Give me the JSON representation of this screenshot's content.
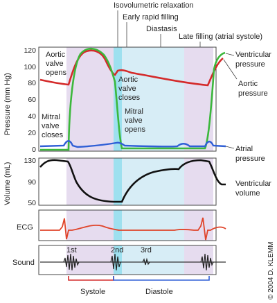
{
  "header": {
    "phase_labels": [
      "Isovolumetric relaxation",
      "Early rapid filling",
      "Diastasis",
      "Late filling (atrial systole)"
    ]
  },
  "pressure_panel": {
    "ylabel": "Pressure (mm Hg)",
    "ticks": [
      "120",
      "100",
      "80",
      "60",
      "40",
      "20",
      "0"
    ],
    "annotations": {
      "aortic_opens": [
        "Aortic",
        "valve",
        "opens"
      ],
      "aortic_closes": [
        "Aortic",
        "valve",
        "closes"
      ],
      "mitral_closes": [
        "Mitral",
        "valve",
        "closes"
      ],
      "mitral_opens": [
        "Mitral",
        "valve",
        "opens"
      ]
    },
    "right_labels": {
      "ventricular": [
        "Ventricular",
        "pressure"
      ],
      "aortic": [
        "Aortic",
        "pressure"
      ],
      "atrial": [
        "Atrial",
        "pressure"
      ]
    },
    "colors": {
      "aortic": "#d42a2a",
      "ventricular": "#3cb83c",
      "atrial": "#2f5fd6"
    }
  },
  "volume_panel": {
    "ylabel": "Volume (mL)",
    "ticks": [
      "130",
      "90",
      "50"
    ],
    "right_label": [
      "Ventricular",
      "volume"
    ],
    "color": "#111111"
  },
  "ecg_panel": {
    "label": "ECG",
    "color": "#e0442a"
  },
  "sound_panel": {
    "label": "Sound",
    "heart_sounds": [
      "1st",
      "2nd",
      "3rd"
    ],
    "color": "#222222"
  },
  "phases": {
    "systole": "Systole",
    "diastole": "Diastole",
    "systole_color": "#d42a2a",
    "diastole_color": "#2f5fd6"
  },
  "copyright": "© 2004 D. KLEMM",
  "band_colors": {
    "lavender": "#e6dcef",
    "light_blue": "#d7edf6",
    "cyan": "#9ee0ef"
  }
}
